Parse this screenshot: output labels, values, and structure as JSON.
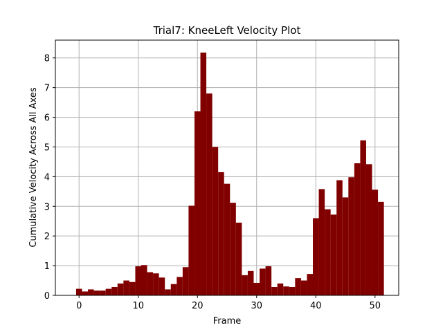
{
  "chart_data": {
    "type": "bar",
    "title": "Trial7: KneeLeft Velocity Plot",
    "xlabel": "Frame",
    "ylabel": "Cumulative Velocity Across All Axes",
    "xlim": [
      -4,
      54
    ],
    "ylim": [
      0,
      8.6
    ],
    "xticks": [
      0,
      10,
      20,
      30,
      40,
      50
    ],
    "yticks": [
      0,
      1,
      2,
      3,
      4,
      5,
      6,
      7,
      8
    ],
    "grid": true,
    "bar_color": "#800000",
    "x": [
      0,
      1,
      2,
      3,
      4,
      5,
      6,
      7,
      8,
      9,
      10,
      11,
      12,
      13,
      14,
      15,
      16,
      17,
      18,
      19,
      20,
      21,
      22,
      23,
      24,
      25,
      26,
      27,
      28,
      29,
      30,
      31,
      32,
      33,
      34,
      35,
      36,
      37,
      38,
      39,
      40,
      41,
      42,
      43,
      44,
      45,
      46,
      47,
      48,
      49,
      50,
      51
    ],
    "values": [
      0.22,
      0.13,
      0.2,
      0.16,
      0.16,
      0.22,
      0.28,
      0.4,
      0.5,
      0.45,
      0.98,
      1.02,
      0.78,
      0.74,
      0.6,
      0.2,
      0.38,
      0.62,
      0.95,
      3.02,
      6.2,
      8.18,
      6.8,
      5.0,
      4.15,
      3.76,
      3.12,
      2.45,
      0.68,
      0.82,
      0.42,
      0.9,
      0.98,
      0.28,
      0.4,
      0.3,
      0.28,
      0.58,
      0.5,
      0.72,
      2.6,
      3.58,
      2.9,
      2.72,
      3.88,
      3.3,
      3.98,
      4.45,
      5.22,
      4.42,
      3.56,
      3.15
    ]
  }
}
